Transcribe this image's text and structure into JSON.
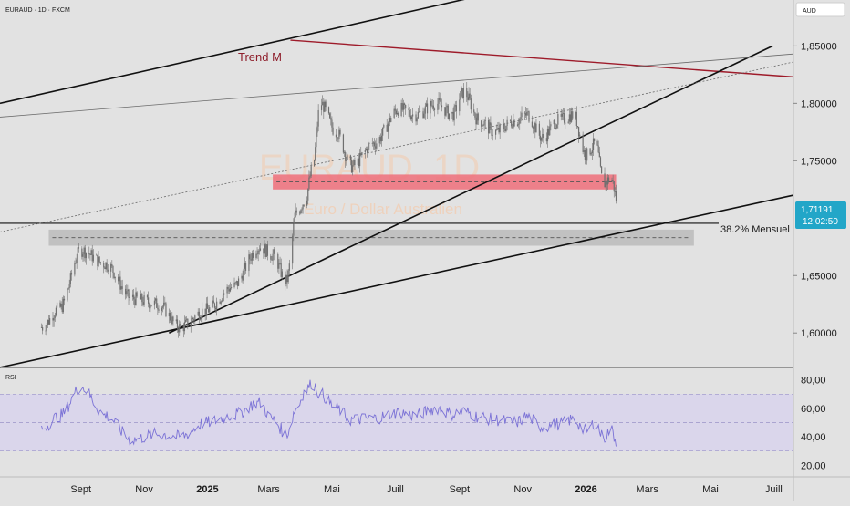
{
  "header": {
    "symbol_line": "EURAUD · 1D · FXCM",
    "currency_button": "AUD"
  },
  "watermark": {
    "symbol": "EURAUD, 1D",
    "name": "Euro / Dollar Australien"
  },
  "price_panel": {
    "y_ticks": [
      "1,85000",
      "1,80000",
      "1,75000",
      "1,65000",
      "1,60000"
    ],
    "last_price": "1,71191",
    "countdown": "12:02:50",
    "trend_label": "Trend M",
    "fib_label": "38.2% Mensuel"
  },
  "rsi_panel": {
    "label": "RSI",
    "y_ticks": [
      "80,00",
      "60,00",
      "40,00",
      "20,00"
    ]
  },
  "x_axis": {
    "labels": [
      "Sept",
      "Nov",
      "2025",
      "Mars",
      "Mai",
      "Juill",
      "Sept",
      "Nov",
      "2026",
      "Mars",
      "Mai",
      "Juill"
    ]
  },
  "colors": {
    "background": "#e2e2e2",
    "candle": "#6f6f6f",
    "trend_line": "#9e1b2a",
    "resistance_zone": "#ef6f7a",
    "support_zone": "#b9b9b9",
    "rsi_line": "#7b72d6",
    "rsi_band": "#d8d3ee",
    "price_badge": "#22a6c8"
  },
  "chart_data": [
    {
      "type": "line",
      "subtype": "candlestick",
      "title": "",
      "x": [
        "2024-07-25",
        "2024-08-12",
        "2024-09-01",
        "2024-09-25",
        "2024-10-20",
        "2024-11-15",
        "2024-12-05",
        "2024-12-31",
        "2025-01-25",
        "2025-02-20",
        "2025-03-05",
        "2025-03-18",
        "2025-03-28",
        "2025-04-05",
        "2025-04-12",
        "2025-04-20",
        "2025-05-05",
        "2025-05-20",
        "2025-06-10",
        "2025-07-05",
        "2025-07-20",
        "2025-08-10",
        "2025-08-25",
        "2025-09-05",
        "2025-09-20",
        "2025-10-05",
        "2025-10-25",
        "2025-11-05",
        "2025-11-20",
        "2025-12-05",
        "2025-12-20",
        "2026-01-01",
        "2026-01-10",
        "2026-01-18",
        "2026-01-25",
        "2026-02-01"
      ],
      "series": [
        {
          "values": [
            1.605,
            1.622,
            1.672,
            1.66,
            1.63,
            1.625,
            1.605,
            1.62,
            1.64,
            1.675,
            1.668,
            1.645,
            1.705,
            1.715,
            1.742,
            1.8,
            1.775,
            1.745,
            1.765,
            1.795,
            1.79,
            1.8,
            1.79,
            1.81,
            1.785,
            1.775,
            1.785,
            1.79,
            1.77,
            1.785,
            1.79,
            1.755,
            1.765,
            1.73,
            1.735,
            1.712
          ]
        }
      ],
      "ylim": [
        1.57,
        1.89
      ],
      "y_ticks": [
        1.6,
        1.65,
        1.75,
        1.8,
        1.85
      ],
      "last_value": 1.71191,
      "annotations": [
        {
          "type": "zone",
          "label": "",
          "range": [
            1.725,
            1.738
          ],
          "from": "2025-03-05",
          "to": "2026-01-30"
        },
        {
          "type": "zone",
          "label": "",
          "range": [
            1.676,
            1.69
          ],
          "from": "2024-08-01",
          "to": "2026-04-15"
        },
        {
          "type": "hline",
          "label": "38.2% Mensuel",
          "value": 1.6955
        },
        {
          "type": "trendline",
          "label": "Trend M",
          "from": [
            "2025-03-22",
            1.855
          ],
          "to": [
            "2026-07-20",
            1.823
          ]
        },
        {
          "type": "trendline",
          "label": "",
          "from": [
            "2024-06-15",
            1.8
          ],
          "to": [
            "2025-12-01",
            1.908
          ]
        },
        {
          "type": "trendline",
          "label": "",
          "from": [
            "2024-06-15",
            1.57
          ],
          "to": [
            "2026-07-20",
            1.72
          ]
        },
        {
          "type": "trendline",
          "label": "",
          "from": [
            "2024-11-25",
            1.6
          ],
          "to": [
            "2026-06-30",
            1.85
          ]
        },
        {
          "type": "trendline",
          "label": "",
          "from": [
            "2024-06-15",
            1.788
          ],
          "to": [
            "2026-07-20",
            1.843
          ]
        },
        {
          "type": "trendline",
          "label": "",
          "from": [
            "2024-06-15",
            1.688
          ],
          "to": [
            "2026-07-20",
            1.836
          ]
        }
      ],
      "legend": "none",
      "grid": false
    },
    {
      "type": "line",
      "title": "",
      "label": "RSI",
      "x": [
        "2024-07-25",
        "2024-08-12",
        "2024-09-01",
        "2024-09-25",
        "2024-10-20",
        "2024-11-15",
        "2024-12-05",
        "2024-12-31",
        "2025-01-25",
        "2025-02-20",
        "2025-03-05",
        "2025-03-18",
        "2025-03-28",
        "2025-04-05",
        "2025-04-12",
        "2025-04-20",
        "2025-05-05",
        "2025-05-20",
        "2025-06-10",
        "2025-07-05",
        "2025-07-20",
        "2025-08-10",
        "2025-08-25",
        "2025-09-05",
        "2025-09-20",
        "2025-10-05",
        "2025-10-25",
        "2025-11-05",
        "2025-11-20",
        "2025-12-05",
        "2025-12-20",
        "2026-01-01",
        "2026-01-10",
        "2026-01-18",
        "2026-01-25",
        "2026-02-01"
      ],
      "series": [
        {
          "name": "RSI",
          "values": [
            46,
            55,
            75,
            55,
            38,
            42,
            40,
            50,
            55,
            64,
            52,
            42,
            60,
            72,
            78,
            70,
            60,
            52,
            53,
            57,
            55,
            60,
            56,
            58,
            54,
            52,
            50,
            54,
            47,
            49,
            52,
            44,
            50,
            39,
            45,
            34
          ]
        }
      ],
      "ylim": [
        17,
        83
      ],
      "y_ticks": [
        20,
        40,
        60,
        80
      ],
      "bands": [
        30,
        50,
        70
      ],
      "legend": "none",
      "grid": false
    }
  ]
}
